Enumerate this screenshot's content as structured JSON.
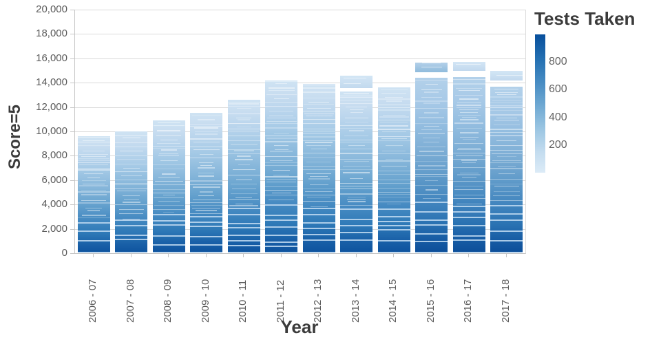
{
  "chart_data": {
    "type": "bar",
    "title": "",
    "xlabel": "Year",
    "ylabel": "Score=5",
    "ylim": [
      0,
      20000
    ],
    "yticks": [
      0,
      2000,
      4000,
      6000,
      8000,
      10000,
      12000,
      14000,
      16000,
      18000,
      20000
    ],
    "ytick_labels": [
      "0",
      "2,000",
      "4,000",
      "6,000",
      "8,000",
      "10,000",
      "12,000",
      "14,000",
      "16,000",
      "18,000",
      "20,000"
    ],
    "grid": true,
    "categories": [
      "2006 - 07",
      "2007 - 08",
      "2008 - 09",
      "2009 - 10",
      "2010 - 11",
      "2011 - 12",
      "2012 - 13",
      "2013 - 14",
      "2014 - 15",
      "2015 - 16",
      "2016 - 17",
      "2017 - 18"
    ],
    "values": [
      9600,
      10000,
      10900,
      11500,
      12600,
      14200,
      13900,
      14600,
      13600,
      15650,
      15700,
      14950
    ],
    "mark_note": "Each bar is a stack of many thin segments shaded by Tests Taken; darker segments (more tests) stack at the bottom, lighter at the top.",
    "bars": [
      {
        "category": "2006 - 07",
        "total": 9600,
        "segments": [
          {
            "from": 0,
            "to": 9600,
            "style": "body"
          }
        ]
      },
      {
        "category": "2007 - 08",
        "total": 10000,
        "segments": [
          {
            "from": 0,
            "to": 10000,
            "style": "body"
          }
        ]
      },
      {
        "category": "2008 - 09",
        "total": 10900,
        "segments": [
          {
            "from": 0,
            "to": 10900,
            "style": "body"
          }
        ]
      },
      {
        "category": "2009 - 10",
        "total": 11500,
        "segments": [
          {
            "from": 0,
            "to": 11500,
            "style": "body"
          }
        ]
      },
      {
        "category": "2010 - 11",
        "total": 12600,
        "segments": [
          {
            "from": 0,
            "to": 12600,
            "style": "body"
          }
        ]
      },
      {
        "category": "2011 - 12",
        "total": 14200,
        "segments": [
          {
            "from": 0,
            "to": 14200,
            "style": "body"
          }
        ]
      },
      {
        "category": "2012 - 13",
        "total": 13900,
        "segments": [
          {
            "from": 0,
            "to": 13900,
            "style": "body"
          }
        ]
      },
      {
        "category": "2013 - 14",
        "total": 14600,
        "segments": [
          {
            "from": 0,
            "to": 13250,
            "style": "body"
          },
          {
            "from": 13550,
            "to": 14600,
            "style": "cap-light"
          }
        ]
      },
      {
        "category": "2014 - 15",
        "total": 13600,
        "segments": [
          {
            "from": 0,
            "to": 13600,
            "style": "body"
          }
        ]
      },
      {
        "category": "2015 - 16",
        "total": 15650,
        "segments": [
          {
            "from": 0,
            "to": 14400,
            "style": "body-dark"
          },
          {
            "from": 14850,
            "to": 15650,
            "style": "cap-textured"
          }
        ]
      },
      {
        "category": "2016 - 17",
        "total": 15700,
        "segments": [
          {
            "from": 0,
            "to": 14480,
            "style": "body-dark"
          },
          {
            "from": 15000,
            "to": 15700,
            "style": "cap-light"
          }
        ]
      },
      {
        "category": "2017 - 18",
        "total": 14950,
        "segments": [
          {
            "from": 0,
            "to": 13650,
            "style": "body-dark"
          },
          {
            "from": 14200,
            "to": 14950,
            "style": "cap-light"
          }
        ]
      }
    ],
    "legend": {
      "title": "Tests Taken",
      "position": "right",
      "min": 0,
      "max": 1000,
      "ticks": [
        200,
        400,
        600,
        800
      ],
      "tick_labels": [
        "200",
        "400",
        "600",
        "800"
      ],
      "color_low": "#deebf7",
      "color_high": "#084f9c"
    }
  },
  "colors": {
    "bar_dark": "#0d529e",
    "bar_light": "#cfe3f3",
    "grid": "#d9d9d9",
    "axis": "#c6c6c6",
    "tick_text": "#5b5b5b",
    "title_text": "#3b3b3b"
  }
}
